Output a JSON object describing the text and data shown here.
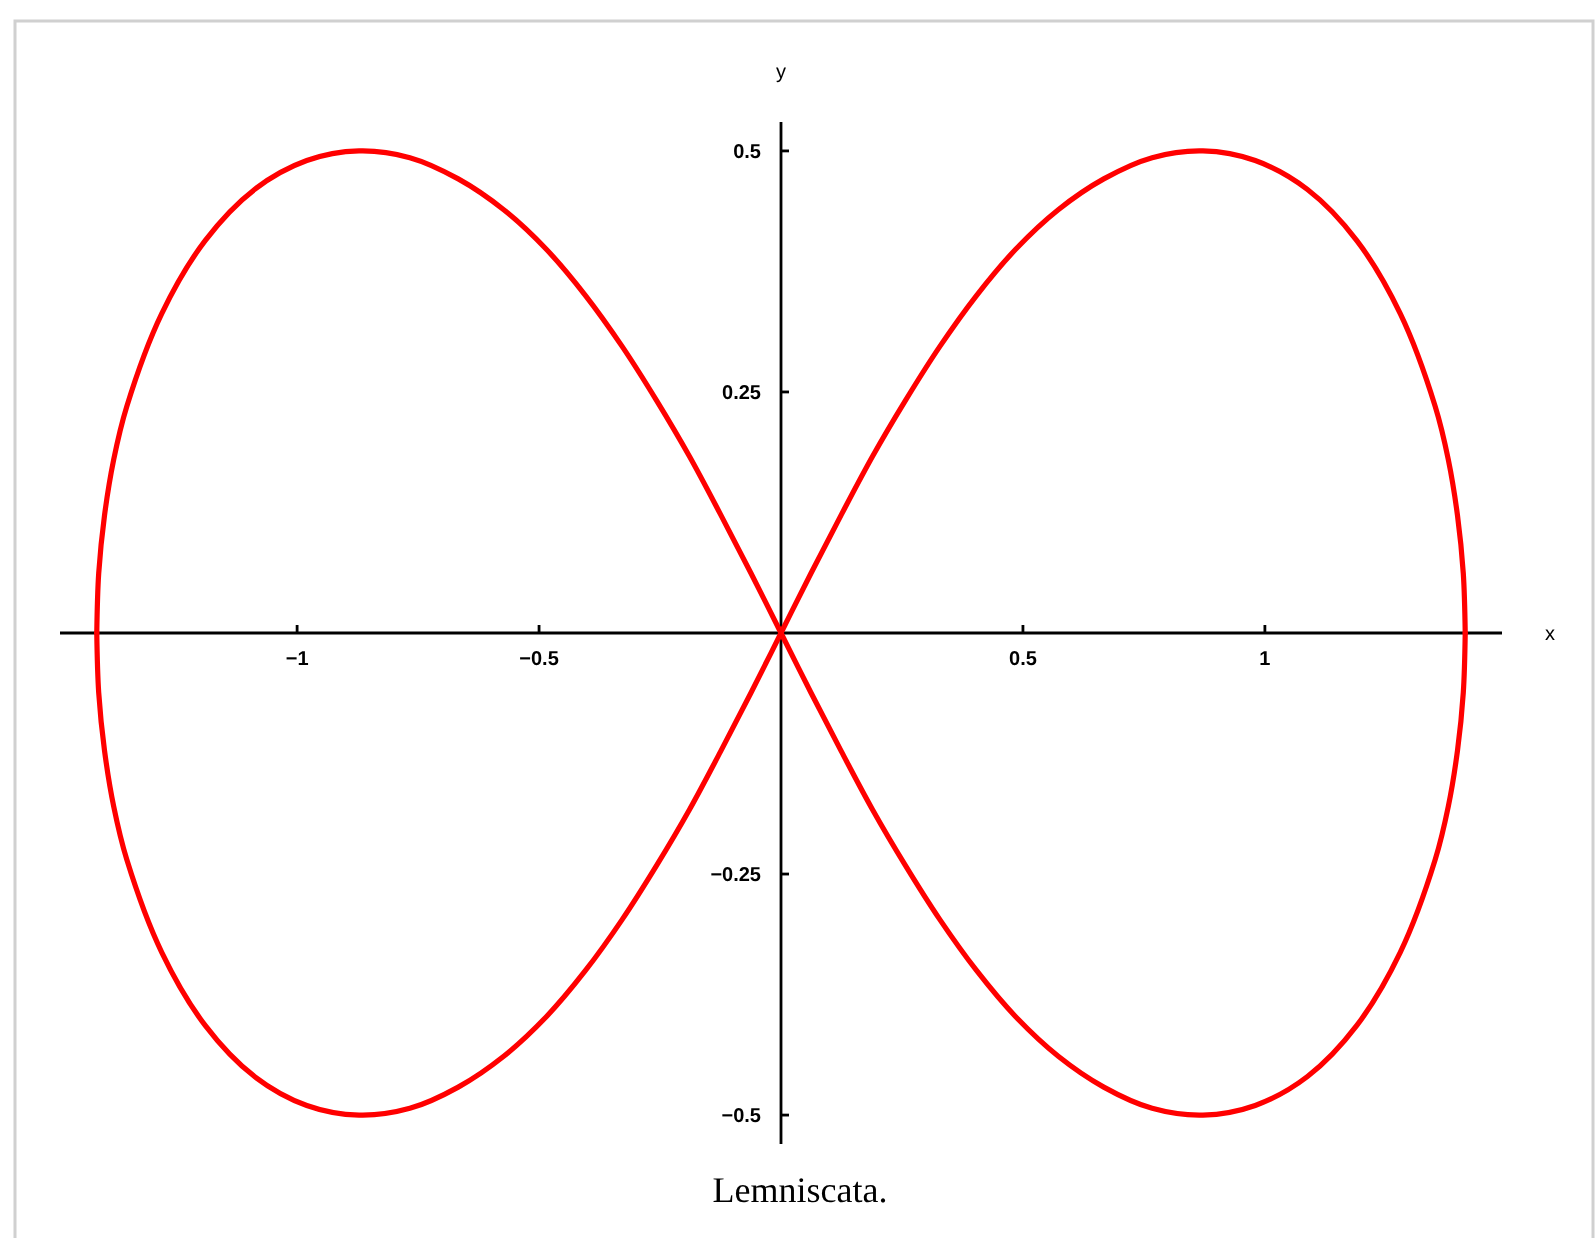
{
  "chart_data": {
    "type": "line",
    "line_style": "solid",
    "series": [
      {
        "color": "#ff0000",
        "x": [
          -1.414,
          -1.41,
          -1.398,
          -1.379,
          -1.352,
          -1.28,
          -1.19,
          -1.088,
          -0.98,
          -0.872,
          -0.767,
          -0.667,
          -0.573,
          -0.485,
          -0.404,
          -0.328,
          -0.257,
          -0.189,
          -0.125,
          -0.062,
          0,
          0.062,
          0.125,
          0.189,
          0.257,
          0.328,
          0.404,
          0.485,
          0.573,
          0.667,
          0.767,
          0.872,
          0.98,
          1.088,
          1.19,
          1.28,
          1.352,
          1.379,
          1.398,
          1.41,
          1.414
        ],
        "values": [
          0,
          -0.062,
          -0.122,
          -0.18,
          -0.235,
          -0.331,
          -0.407,
          -0.46,
          -0.49,
          -0.5,
          -0.493,
          -0.471,
          -0.439,
          -0.398,
          -0.35,
          -0.297,
          -0.241,
          -0.183,
          -0.123,
          -0.062,
          0,
          0.062,
          0.123,
          0.183,
          0.241,
          0.297,
          0.35,
          0.398,
          0.439,
          0.471,
          0.493,
          0.5,
          0.49,
          0.46,
          0.407,
          0.331,
          0.235,
          0.18,
          0.122,
          0.062,
          0
        ]
      },
      {
        "color": "#ff0000",
        "x": [
          -1.414,
          -1.41,
          -1.398,
          -1.379,
          -1.352,
          -1.28,
          -1.19,
          -1.088,
          -0.98,
          -0.872,
          -0.767,
          -0.667,
          -0.573,
          -0.485,
          -0.404,
          -0.328,
          -0.257,
          -0.189,
          -0.125,
          -0.062,
          0
        ],
        "values": [
          0,
          0.062,
          0.122,
          0.18,
          0.235,
          0.331,
          0.407,
          0.46,
          0.49,
          0.5,
          0.493,
          0.471,
          0.439,
          0.398,
          0.35,
          0.297,
          0.241,
          0.183,
          0.123,
          0.062,
          0
        ]
      },
      {
        "color": "#ff0000",
        "x": [
          0,
          0.062,
          0.125,
          0.189,
          0.257,
          0.328,
          0.404,
          0.485,
          0.573,
          0.667,
          0.767,
          0.872,
          0.98,
          1.088,
          1.19,
          1.28,
          1.352,
          1.379,
          1.398,
          1.41,
          1.414
        ],
        "values": [
          0,
          -0.062,
          -0.123,
          -0.183,
          -0.241,
          -0.297,
          -0.35,
          -0.398,
          -0.439,
          -0.471,
          -0.493,
          -0.5,
          -0.49,
          -0.46,
          -0.407,
          -0.331,
          -0.235,
          -0.18,
          -0.122,
          -0.062,
          0
        ]
      }
    ],
    "xlim": [
      -1.49,
      1.49
    ],
    "ylim": [
      -0.53,
      0.53
    ],
    "xticks": [
      {
        "value": -1,
        "label": "−1"
      },
      {
        "value": -0.5,
        "label": "−0.5"
      },
      0.5,
      1
    ],
    "yticks": [
      {
        "value": -0.5,
        "label": "−0.5"
      },
      {
        "value": -0.25,
        "label": "−0.25"
      },
      0.25,
      0.5
    ],
    "xlabel": "x",
    "ylabel": "y",
    "annotations": [
      "Lemniscata."
    ]
  }
}
